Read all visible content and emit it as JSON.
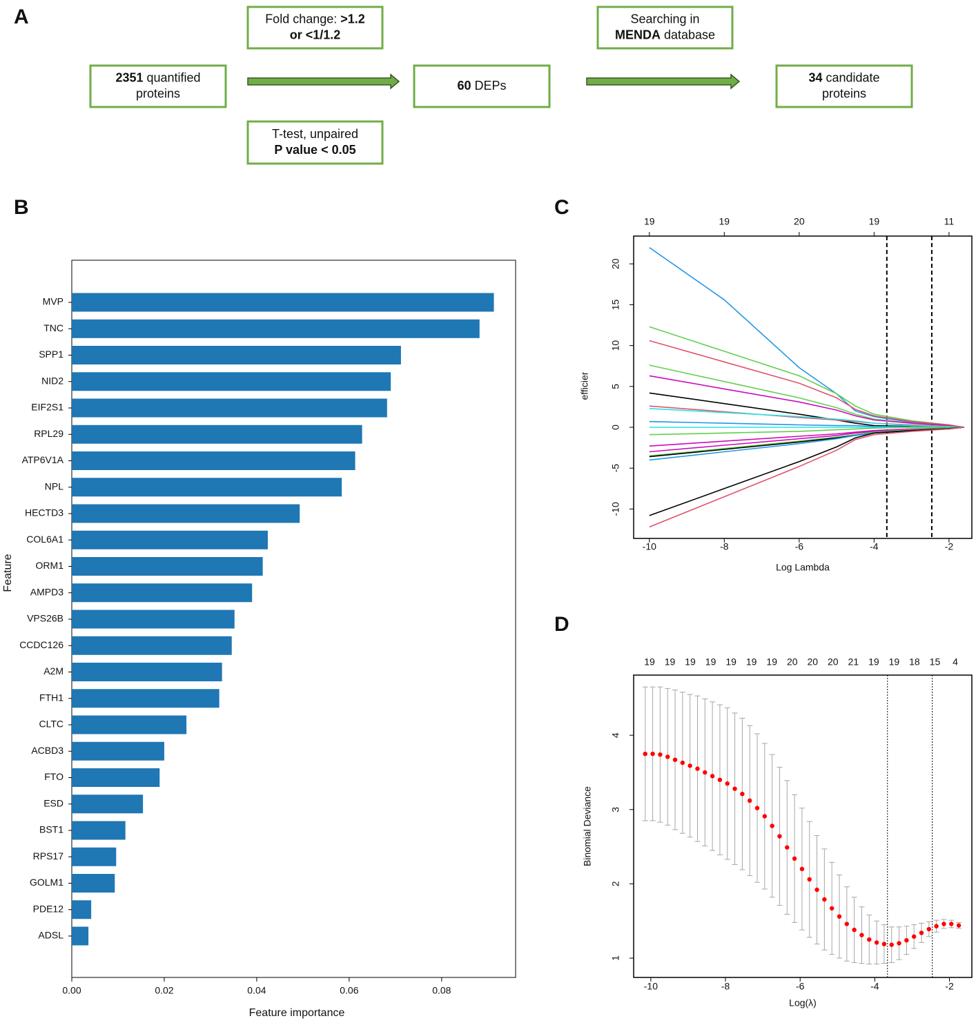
{
  "flow": {
    "panel": "A",
    "boxes": [
      {
        "lines": [
          [
            {
              "text": "2351",
              "bold": true
            },
            {
              "text": "quantified"
            }
          ],
          [
            {
              "text": "proteins"
            }
          ]
        ]
      },
      {
        "lines": [
          [
            {
              "text": "60",
              "bold": true
            },
            {
              "text": "DEPs"
            }
          ]
        ]
      },
      {
        "lines": [
          [
            {
              "text": "34",
              "bold": true
            },
            {
              "text": "candidate"
            }
          ],
          [
            {
              "text": "proteins"
            }
          ]
        ]
      },
      {
        "lines": [
          [
            {
              "text": "Fold change:"
            },
            {
              "text": ">1.2",
              "bold": true
            }
          ],
          [
            {
              "text": "or <1/1.2",
              "bold": true
            }
          ]
        ]
      },
      {
        "lines": [
          [
            {
              "text": "T-test, unpaired"
            }
          ],
          [
            {
              "text": "P value < 0.05",
              "bold": true
            }
          ]
        ]
      },
      {
        "lines": [
          [
            {
              "text": "Searching in"
            }
          ],
          [
            {
              "text": "MENDA",
              "bold": true
            },
            {
              "text": "database"
            }
          ]
        ]
      }
    ]
  },
  "chart_data": [
    {
      "type": "barh",
      "panel": "B",
      "xlabel": "Feature importance",
      "ylabel": "Feature",
      "color": "#1f77b4",
      "categories": [
        "MVP",
        "TNC",
        "SPP1",
        "NID2",
        "EIF2S1",
        "RPL29",
        "ATP6V1A",
        "NPL",
        "HECTD3",
        "COL6A1",
        "ORM1",
        "AMPD3",
        "VPS26B",
        "CCDC126",
        "A2M",
        "FTH1",
        "CLTC",
        "ACBD3",
        "FTO",
        "ESD",
        "BST1",
        "RPS17",
        "GOLM1",
        "PDE12",
        "ADSL"
      ],
      "values": [
        0.0913,
        0.0882,
        0.0712,
        0.069,
        0.0682,
        0.0628,
        0.0613,
        0.0584,
        0.0493,
        0.0424,
        0.0413,
        0.039,
        0.0352,
        0.0346,
        0.0325,
        0.0319,
        0.0248,
        0.02,
        0.019,
        0.0154,
        0.0116,
        0.0096,
        0.0093,
        0.0042,
        0.0036
      ],
      "xlim": [
        0,
        0.096
      ],
      "xticks": [
        {
          "value": 0,
          "label": "0.00"
        },
        {
          "value": 0.02,
          "label": "0.02"
        },
        {
          "value": 0.04,
          "label": "0.04"
        },
        {
          "value": 0.06,
          "label": "0.06"
        },
        {
          "value": 0.08,
          "label": "0.08"
        }
      ]
    },
    {
      "type": "line",
      "panel": "C",
      "xlabel": "Log Lambda",
      "ylabel": "Coefficients",
      "x": [
        -10,
        -8,
        -6,
        -5,
        -4.5,
        -4,
        -3,
        -2,
        -1.6
      ],
      "xlim": [
        -10.42,
        -1.39
      ],
      "ylim": [
        -13.6,
        23.4
      ],
      "xticks": [
        -10,
        -8,
        -6,
        -4,
        -2
      ],
      "yticks": [
        -10,
        -5,
        0,
        5,
        10,
        15,
        20
      ],
      "top_labels": [
        19,
        19,
        20,
        19,
        11
      ],
      "vlines": [
        -3.66,
        -2.46
      ],
      "series": [
        {
          "color": "#2297e6",
          "values": [
            22,
            15.6,
            7.3,
            4.1,
            2.0,
            1.3,
            0.6,
            0.2,
            0
          ]
        },
        {
          "color": "#61d04f",
          "values": [
            12.3,
            9.3,
            6.3,
            4.1,
            2.6,
            1.6,
            0.8,
            0.3,
            0
          ]
        },
        {
          "color": "#df536b",
          "values": [
            10.6,
            8.0,
            5.4,
            3.6,
            2.2,
            1.4,
            0.7,
            0.3,
            0
          ]
        },
        {
          "color": "#61d04f",
          "values": [
            7.6,
            5.6,
            3.6,
            2.4,
            1.6,
            1.0,
            0.5,
            0.2,
            0
          ]
        },
        {
          "color": "#cd0bbc",
          "values": [
            6.3,
            4.7,
            3.1,
            2.1,
            1.4,
            0.9,
            0.5,
            0.2,
            0
          ]
        },
        {
          "color": "#000000",
          "values": [
            4.2,
            2.9,
            1.6,
            0.9,
            0.5,
            0.2,
            0.1,
            0.05,
            0
          ]
        },
        {
          "color": "#df536b",
          "values": [
            2.6,
            1.9,
            1.2,
            0.9,
            0.7,
            0.5,
            0.3,
            0.1,
            0
          ]
        },
        {
          "color": "#28e2e5",
          "values": [
            2.3,
            1.8,
            1.3,
            1.0,
            0.8,
            0.5,
            0.2,
            0.1,
            0
          ]
        },
        {
          "color": "#2297e6",
          "values": [
            0.7,
            0.5,
            0.3,
            0.2,
            0.2,
            0.1,
            0.05,
            0,
            0
          ]
        },
        {
          "color": "#28e2e5",
          "values": [
            0,
            0,
            0,
            0,
            0,
            0,
            0,
            0,
            0
          ]
        },
        {
          "color": "#61d04f",
          "values": [
            -0.9,
            -0.7,
            -0.5,
            -0.3,
            -0.2,
            -0.1,
            0,
            0,
            0
          ]
        },
        {
          "color": "#cd0bbc",
          "values": [
            -2.3,
            -1.7,
            -1.1,
            -0.8,
            -0.6,
            -0.4,
            -0.2,
            -0.1,
            0
          ]
        },
        {
          "color": "#cd0bbc",
          "values": [
            -3,
            -2.2,
            -1.4,
            -1.0,
            -0.7,
            -0.5,
            -0.3,
            -0.1,
            0
          ]
        },
        {
          "color": "#61d04f",
          "values": [
            -3.5,
            -2.6,
            -1.7,
            -1.2,
            -0.9,
            -0.6,
            -0.3,
            -0.1,
            0
          ]
        },
        {
          "color": "#000000",
          "values": [
            -3.6,
            -2.7,
            -1.8,
            -1.3,
            -1.0,
            -0.7,
            -0.4,
            -0.2,
            0
          ]
        },
        {
          "color": "#2297e6",
          "values": [
            -4,
            -3.0,
            -2.0,
            -1.4,
            -1.0,
            -0.7,
            -0.4,
            -0.2,
            0
          ]
        },
        {
          "color": "#000000",
          "values": [
            -10.8,
            -7.5,
            -4.2,
            -2.4,
            -1.3,
            -0.7,
            -0.4,
            -0.15,
            0
          ]
        },
        {
          "color": "#df536b",
          "values": [
            -12.2,
            -8.5,
            -4.8,
            -2.8,
            -1.5,
            -0.9,
            -0.5,
            -0.2,
            0
          ]
        }
      ]
    },
    {
      "type": "errorbar",
      "panel": "D",
      "xlabel": "Log(λ)",
      "ylabel": "Binomial Deviance",
      "color": "#ff0000",
      "error_color": "#a6a6a6",
      "xlim": [
        -10.46,
        -1.4
      ],
      "ylim": [
        0.74,
        4.81
      ],
      "xticks": [
        -10,
        -8,
        -6,
        -4,
        -2
      ],
      "yticks": [
        1,
        2,
        3,
        4
      ],
      "top_labels": [
        19,
        19,
        19,
        19,
        19,
        19,
        19,
        20,
        20,
        20,
        21,
        19,
        19,
        18,
        15,
        4
      ],
      "vlines": [
        -3.66,
        -2.46
      ],
      "x": [
        -10.15,
        -9.95,
        -9.75,
        -9.55,
        -9.35,
        -9.15,
        -8.95,
        -8.75,
        -8.55,
        -8.35,
        -8.15,
        -7.95,
        -7.75,
        -7.55,
        -7.35,
        -7.15,
        -6.95,
        -6.75,
        -6.55,
        -6.35,
        -6.15,
        -5.95,
        -5.75,
        -5.55,
        -5.35,
        -5.15,
        -4.95,
        -4.75,
        -4.55,
        -4.35,
        -4.15,
        -3.95,
        -3.75,
        -3.55,
        -3.35,
        -3.15,
        -2.95,
        -2.75,
        -2.55,
        -2.35,
        -2.15,
        -1.95,
        -1.75
      ],
      "values": [
        3.75,
        3.75,
        3.74,
        3.71,
        3.67,
        3.63,
        3.59,
        3.55,
        3.5,
        3.45,
        3.4,
        3.35,
        3.28,
        3.21,
        3.12,
        3.02,
        2.91,
        2.78,
        2.64,
        2.49,
        2.34,
        2.2,
        2.06,
        1.92,
        1.79,
        1.67,
        1.56,
        1.46,
        1.38,
        1.31,
        1.25,
        1.21,
        1.19,
        1.18,
        1.2,
        1.24,
        1.29,
        1.34,
        1.39,
        1.43,
        1.46,
        1.46,
        1.44
      ],
      "errors": [
        0.9,
        0.9,
        0.91,
        0.92,
        0.94,
        0.95,
        0.96,
        0.98,
        0.99,
        1.0,
        1.01,
        1.02,
        1.02,
        1.02,
        1.01,
        1.0,
        0.98,
        0.96,
        0.93,
        0.9,
        0.86,
        0.82,
        0.78,
        0.73,
        0.68,
        0.62,
        0.56,
        0.5,
        0.44,
        0.38,
        0.33,
        0.29,
        0.26,
        0.24,
        0.22,
        0.19,
        0.16,
        0.13,
        0.1,
        0.08,
        0.06,
        0.05,
        0.04
      ]
    }
  ]
}
